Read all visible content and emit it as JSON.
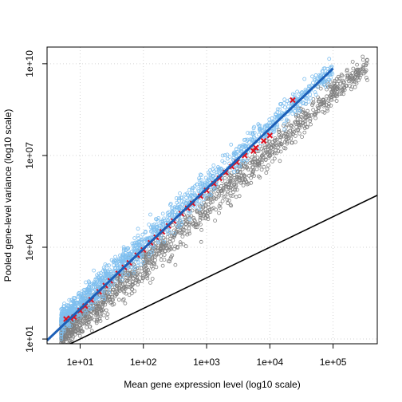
{
  "chart_data": {
    "type": "scatter",
    "title": "",
    "xlabel": "Mean gene expression level (log10 scale)",
    "ylabel": "Pooled gene-level variance (log10 scale)",
    "x_scale": "log10",
    "y_scale": "log10",
    "xlim": [
      3,
      500000
    ],
    "ylim": [
      7,
      35000000000
    ],
    "x_ticks": [
      {
        "value": 10,
        "label": "1e+01"
      },
      {
        "value": 100,
        "label": "1e+02"
      },
      {
        "value": 1000,
        "label": "1e+03"
      },
      {
        "value": 10000,
        "label": "1e+04"
      },
      {
        "value": 100000,
        "label": "1e+05"
      }
    ],
    "y_ticks": [
      {
        "value": 10,
        "label": "1e+01"
      },
      {
        "value": 10000,
        "label": "1e+04"
      },
      {
        "value": 10000000,
        "label": "1e+07"
      },
      {
        "value": 10000000000,
        "label": "1e+10"
      }
    ],
    "grid": true,
    "colors": {
      "gray_points": "#808080",
      "blue_points": "#7fbfef",
      "red_crosses": "#e0101e",
      "fit_line": "#1c5fb8",
      "reference_line": "#000000",
      "grid": "#d3d3d3"
    },
    "series": [
      {
        "marker": "open-circle",
        "color": "#808080",
        "band_center": [
          [
            5,
            15
          ],
          [
            10,
            45
          ],
          [
            100,
            2500
          ],
          [
            1000,
            180000
          ],
          [
            10000,
            15000000
          ],
          [
            100000,
            1200000000
          ],
          [
            350000,
            9000000000
          ]
        ],
        "band_spread_log10": 0.55
      },
      {
        "marker": "open-circle",
        "color": "#7fbfef",
        "band_center": [
          [
            5,
            40
          ],
          [
            10,
            160
          ],
          [
            100,
            12000
          ],
          [
            1000,
            1100000
          ],
          [
            10000,
            100000000
          ],
          [
            100000,
            7000000000
          ]
        ],
        "band_spread_log10": 0.45
      },
      {
        "marker": "x",
        "color": "#e0101e",
        "points": [
          [
            6,
            45
          ],
          [
            7,
            48
          ],
          [
            8,
            52
          ],
          [
            10,
            85
          ],
          [
            12,
            120
          ],
          [
            15,
            190
          ],
          [
            20,
            350
          ],
          [
            25,
            560
          ],
          [
            30,
            800
          ],
          [
            40,
            1400
          ],
          [
            50,
            2200
          ],
          [
            60,
            3100
          ],
          [
            80,
            5500
          ],
          [
            100,
            8200
          ],
          [
            130,
            14000
          ],
          [
            160,
            21000
          ],
          [
            200,
            32000
          ],
          [
            250,
            50000
          ],
          [
            300,
            72000
          ],
          [
            400,
            125000
          ],
          [
            500,
            190000
          ],
          [
            600,
            270000
          ],
          [
            800,
            470000
          ],
          [
            1000,
            720000
          ],
          [
            1300,
            1200000
          ],
          [
            1600,
            1800000
          ],
          [
            2000,
            2800000
          ],
          [
            2500,
            4300000
          ],
          [
            3000,
            6000000
          ],
          [
            4000,
            10000000
          ],
          [
            5500,
            14000000
          ],
          [
            6000,
            18000000
          ],
          [
            8000,
            30000000
          ],
          [
            10000,
            45000000
          ],
          [
            23000,
            650000000
          ]
        ]
      },
      {
        "type": "line",
        "name_role": "fitted trend",
        "color": "#1c5fb8",
        "points": [
          [
            3,
            9
          ],
          [
            100000,
            7000000000
          ]
        ]
      },
      {
        "type": "line",
        "name_role": "variance equals mean",
        "color": "#000000",
        "points": [
          [
            3,
            3
          ],
          [
            500000,
            500000
          ]
        ]
      }
    ]
  }
}
